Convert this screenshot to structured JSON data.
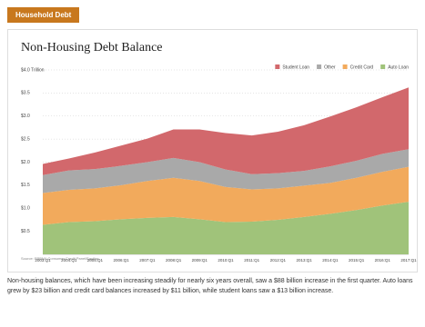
{
  "tab_label": "Household Debt",
  "chart_data": {
    "type": "stacked-area",
    "title": "Non-Housing Debt Balance",
    "source": "Source: FRBNY Consumer Credit Panel/Equifax",
    "categories": [
      "2003:Q1",
      "2004:Q1",
      "2005:Q1",
      "2006:Q1",
      "2007:Q1",
      "2008:Q1",
      "2009:Q1",
      "2010:Q1",
      "2011:Q1",
      "2012:Q1",
      "2013:Q1",
      "2014:Q1",
      "2015:Q1",
      "2016:Q1",
      "2017:Q1"
    ],
    "series": [
      {
        "name": "Student Loan",
        "color": "#d2686c",
        "values": [
          0.24,
          0.26,
          0.36,
          0.44,
          0.51,
          0.62,
          0.71,
          0.79,
          0.84,
          0.9,
          0.99,
          1.08,
          1.16,
          1.23,
          1.34
        ]
      },
      {
        "name": "Other",
        "color": "#a9a9a9",
        "values": [
          0.39,
          0.42,
          0.42,
          0.42,
          0.41,
          0.43,
          0.41,
          0.38,
          0.33,
          0.33,
          0.32,
          0.36,
          0.37,
          0.39,
          0.38
        ]
      },
      {
        "name": "Credit Card",
        "color": "#f2aa5c",
        "values": [
          0.69,
          0.7,
          0.71,
          0.74,
          0.8,
          0.85,
          0.83,
          0.76,
          0.7,
          0.68,
          0.68,
          0.67,
          0.7,
          0.73,
          0.76
        ]
      },
      {
        "name": "Auto Loan",
        "color": "#a0c37a",
        "values": [
          0.64,
          0.7,
          0.72,
          0.76,
          0.79,
          0.81,
          0.76,
          0.7,
          0.71,
          0.75,
          0.81,
          0.88,
          0.96,
          1.06,
          1.14
        ]
      }
    ],
    "ylim": [
      0,
      4
    ],
    "yticks": [
      {
        "value": 0.5,
        "label": "$0.5"
      },
      {
        "value": 1,
        "label": "$1.0"
      },
      {
        "value": 1.5,
        "label": "$1.5"
      },
      {
        "value": 2,
        "label": "$2.0"
      },
      {
        "value": 2.5,
        "label": "$2.5"
      },
      {
        "value": 3,
        "label": "$3.0"
      },
      {
        "value": 3.5,
        "label": "$3.5"
      },
      {
        "value": 4,
        "label": "$4.0 Trillion"
      }
    ],
    "grid": true,
    "legend": "top-right"
  },
  "paragraph": "Non-housing balances, which have been increasing steadily for nearly six years overall, saw a $88 billion increase in the first quarter. Auto loans grew by $23 billion and credit card balances increased by $11 billion, while student loans saw a $13 billion increase."
}
